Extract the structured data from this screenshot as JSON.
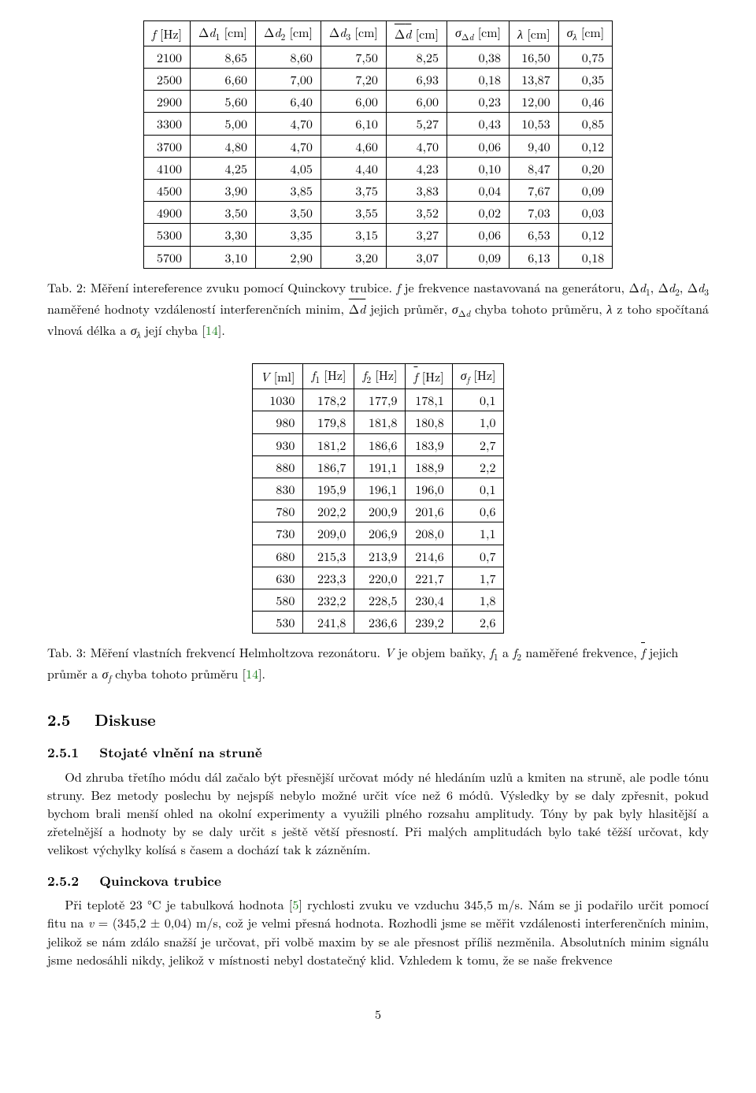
{
  "table2": {
    "headers": [
      "f [Hz]",
      "Δd₁ [cm]",
      "Δd₂ [cm]",
      "Δd₃ [cm]",
      "Δd [cm]",
      "σ_Δd [cm]",
      "λ [cm]",
      "σ_λ [cm]"
    ],
    "header_html": [
      "<span class='it'>f</span> [Hz]",
      "Δ<span class='it'>d</span><sub>1</sub> [cm]",
      "Δ<span class='it'>d</span><sub>2</sub> [cm]",
      "Δ<span class='it'>d</span><sub>3</sub> [cm]",
      "<span class='ovl'>Δ<span class='it'>d</span></span> [cm]",
      "<span class='it'>σ</span><sub>Δ<span class='it'>d</span></sub> [cm]",
      "<span class='it'>λ</span> [cm]",
      "<span class='it'>σ</span><sub><span class='it'>λ</span></sub> [cm]"
    ],
    "rows": [
      [
        "2100",
        "8,65",
        "8,60",
        "7,50",
        "8,25",
        "0,38",
        "16,50",
        "0,75"
      ],
      [
        "2500",
        "6,60",
        "7,00",
        "7,20",
        "6,93",
        "0,18",
        "13,87",
        "0,35"
      ],
      [
        "2900",
        "5,60",
        "6,40",
        "6,00",
        "6,00",
        "0,23",
        "12,00",
        "0,46"
      ],
      [
        "3300",
        "5,00",
        "4,70",
        "6,10",
        "5,27",
        "0,43",
        "10,53",
        "0,85"
      ],
      [
        "3700",
        "4,80",
        "4,70",
        "4,60",
        "4,70",
        "0,06",
        "9,40",
        "0,12"
      ],
      [
        "4100",
        "4,25",
        "4,05",
        "4,40",
        "4,23",
        "0,10",
        "8,47",
        "0,20"
      ],
      [
        "4500",
        "3,90",
        "3,85",
        "3,75",
        "3,83",
        "0,04",
        "7,67",
        "0,09"
      ],
      [
        "4900",
        "3,50",
        "3,50",
        "3,55",
        "3,52",
        "0,02",
        "7,03",
        "0,03"
      ],
      [
        "5300",
        "3,30",
        "3,35",
        "3,15",
        "3,27",
        "0,06",
        "6,53",
        "0,12"
      ],
      [
        "5700",
        "3,10",
        "2,90",
        "3,20",
        "3,07",
        "0,09",
        "6,13",
        "0,18"
      ]
    ],
    "caption_html": "Tab. 2: Měření intereference zvuku pomocí Quinckovy trubice. <span class='it'>f</span> je frekvence nastavovaná na generátoru, Δ<span class='it'>d</span><sub>1</sub>, Δ<span class='it'>d</span><sub>2</sub>, Δ<span class='it'>d</span><sub>3</sub> naměřené hodnoty vzdáleností interferenčních minim, <span class='ovl'>Δ<span class='it'>d</span></span> jejich průměr, <span class='it'>σ</span><sub>Δ<span class='it'>d</span></sub> chyba tohoto průměru, <span class='it'>λ</span> z toho spočítaná vlnová délka a <span class='it'>σ</span><sub><span class='it'>λ</span></sub> její chyba [<span class='ref'>14</span>]."
  },
  "table3": {
    "headers": [
      "V [ml]",
      "f₁ [Hz]",
      "f₂ [Hz]",
      "f̄ [Hz]",
      "σ_f [Hz]"
    ],
    "header_html": [
      "<span class='it'>V</span> [ml]",
      "<span class='it'>f</span><sub>1</sub> [Hz]",
      "<span class='it'>f</span><sub>2</sub> [Hz]",
      "<span class='ovl it'>f</span> [Hz]",
      "<span class='it'>σ</span><sub><span class='it'>f</span></sub> [Hz]"
    ],
    "rows": [
      [
        "1030",
        "178,2",
        "177,9",
        "178,1",
        "0,1"
      ],
      [
        "980",
        "179,8",
        "181,8",
        "180,8",
        "1,0"
      ],
      [
        "930",
        "181,2",
        "186,6",
        "183,9",
        "2,7"
      ],
      [
        "880",
        "186,7",
        "191,1",
        "188,9",
        "2,2"
      ],
      [
        "830",
        "195,9",
        "196,1",
        "196,0",
        "0,1"
      ],
      [
        "780",
        "202,2",
        "200,9",
        "201,6",
        "0,6"
      ],
      [
        "730",
        "209,0",
        "206,9",
        "208,0",
        "1,1"
      ],
      [
        "680",
        "215,3",
        "213,9",
        "214,6",
        "0,7"
      ],
      [
        "630",
        "223,3",
        "220,0",
        "221,7",
        "1,7"
      ],
      [
        "580",
        "232,2",
        "228,5",
        "230,4",
        "1,8"
      ],
      [
        "530",
        "241,8",
        "236,6",
        "239,2",
        "2,6"
      ]
    ],
    "caption_html": "Tab. 3: Měření vlastních frekvencí Helmholtzova rezonátoru. <span class='it'>V</span> je objem baňky, <span class='it'>f</span><sub>1</sub> a <span class='it'>f</span><sub>2</sub> naměřené frekvence, <span class='ovl it'>f</span> jejich průměr a <span class='it'>σ</span><sub><span class='it'>f</span></sub> chyba tohoto průměru [<span class='ref'>14</span>]."
  },
  "section": {
    "number": "2.5",
    "title": "Diskuse"
  },
  "sub1": {
    "number": "2.5.1",
    "title": "Stojaté vlnění na struně",
    "para": "Od zhruba třetího módu dál začalo být přesnější určovat módy né hledáním uzlů a kmiten na struně, ale podle tónu struny. Bez metody poslechu by nejspíš nebylo možné určit více než 6 módů. Výsledky by se daly zpřesnit, pokud bychom brali menší ohled na okolní experimenty a využili plného rozsahu amplitudy. Tóny by pak byly hlasitější a zřetelnější a hodnoty by se daly určit s ještě větší přesností. Při malých amplitudách bylo také těžší určovat, kdy velikost výchylky kolísá s časem a dochází tak k zázněním."
  },
  "sub2": {
    "number": "2.5.2",
    "title": "Quinckova trubice",
    "para_html": "Při teplotě 23 °C je tabulková hodnota [<span class='ref'>5</span>] rychlosti zvuku ve vzduchu 345,5 m/s. Nám se ji podařilo určit pomocí fitu na <span class='it'>v</span> = (345,2 ± 0,04) m/s, což je velmi přesná hodnota. Rozhodli jsme se měřit vzdálenosti interferenčních minim, jelikož se nám zdálo snažší je určovat, při volbě maxim by se ale přesnost příliš nezměnila. Absolutních minim signálu jsme nedosáhli nikdy, jelikož v místnosti nebyl dostatečný klid. Vzhledem k tomu, že se naše frekvence"
  },
  "pagenum": "5",
  "colors": {
    "text": "#000000",
    "background": "#ffffff",
    "reference": "#1a7f1a",
    "border": "#000000"
  },
  "typography": {
    "font_family": "Latin Modern / Computer Modern (serif)",
    "body_size_pt": 11,
    "section_size_pt": 14,
    "subsection_size_pt": 12
  }
}
